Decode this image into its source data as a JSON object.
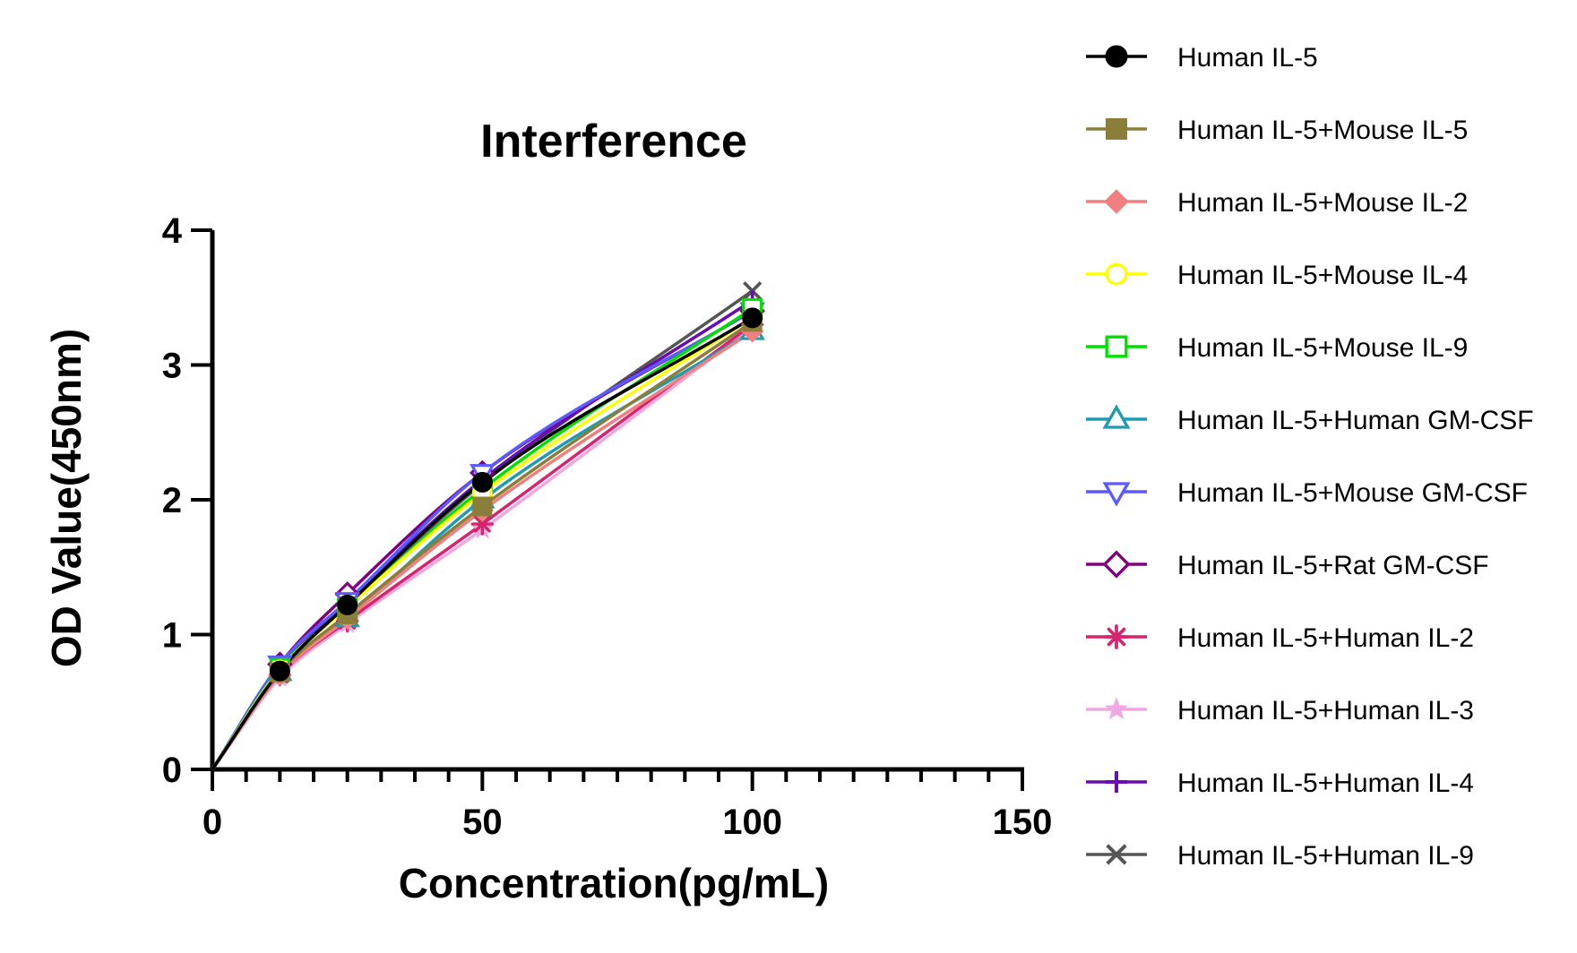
{
  "chart_data": {
    "type": "scatter",
    "title": "Interference",
    "xlabel": "Concentration(pg/mL)",
    "ylabel": "OD Value(450nm)",
    "xlim": [
      0,
      150
    ],
    "ylim": [
      0,
      4
    ],
    "xticks": [
      "0",
      "50",
      "100",
      "150"
    ],
    "yticks": [
      "0",
      "1",
      "2",
      "3",
      "4"
    ],
    "x": [
      0,
      12.5,
      25,
      50,
      100
    ],
    "grid": false,
    "legend_position": "right",
    "series": [
      {
        "name": "Human IL-5",
        "color": "#000000",
        "marker": "circle-filled",
        "values": [
          0,
          0.73,
          1.22,
          2.13,
          3.35
        ]
      },
      {
        "name": "Human IL-5+Mouse IL-5",
        "color": "#8B7D3A",
        "marker": "square-filled",
        "values": [
          0,
          0.72,
          1.15,
          1.95,
          3.32
        ]
      },
      {
        "name": "Human IL-5+Mouse IL-2",
        "color": "#F08080",
        "marker": "diamond-filled",
        "values": [
          0,
          0.7,
          1.12,
          1.92,
          3.25
        ]
      },
      {
        "name": "Human IL-5+Mouse IL-4",
        "color": "#FFFF00",
        "marker": "circle-open",
        "values": [
          0,
          0.74,
          1.2,
          2.05,
          3.35
        ]
      },
      {
        "name": "Human IL-5+Mouse IL-9",
        "color": "#00E000",
        "marker": "square-open",
        "values": [
          0,
          0.75,
          1.2,
          2.08,
          3.42
        ]
      },
      {
        "name": "Human IL-5+Human GM-CSF",
        "color": "#1E9BB0",
        "marker": "triangle-up-open",
        "values": [
          0,
          0.72,
          1.12,
          2.0,
          3.25
        ]
      },
      {
        "name": "Human IL-5+Mouse  GM-CSF",
        "color": "#5A5AFF",
        "marker": "triangle-down-open",
        "values": [
          0,
          0.78,
          1.25,
          2.2,
          3.4
        ]
      },
      {
        "name": "Human IL-5+Rat  GM-CSF",
        "color": "#800080",
        "marker": "diamond-open",
        "values": [
          0,
          0.78,
          1.3,
          2.2,
          3.4
        ]
      },
      {
        "name": "Human IL-5+Human IL-2",
        "color": "#D6246E",
        "marker": "asterisk",
        "values": [
          0,
          0.7,
          1.1,
          1.82,
          3.3
        ]
      },
      {
        "name": "Human IL-5+Human IL-3",
        "color": "#F0A8E0",
        "marker": "star",
        "values": [
          0,
          0.68,
          1.08,
          1.78,
          3.28
        ]
      },
      {
        "name": "Human IL-5+Human IL-4",
        "color": "#6A0DAD",
        "marker": "plus",
        "values": [
          0,
          0.76,
          1.24,
          2.15,
          3.48
        ]
      },
      {
        "name": "Human IL-5+Human IL-9",
        "color": "#555555",
        "marker": "x",
        "values": [
          0,
          0.74,
          1.22,
          2.12,
          3.55
        ]
      }
    ]
  }
}
